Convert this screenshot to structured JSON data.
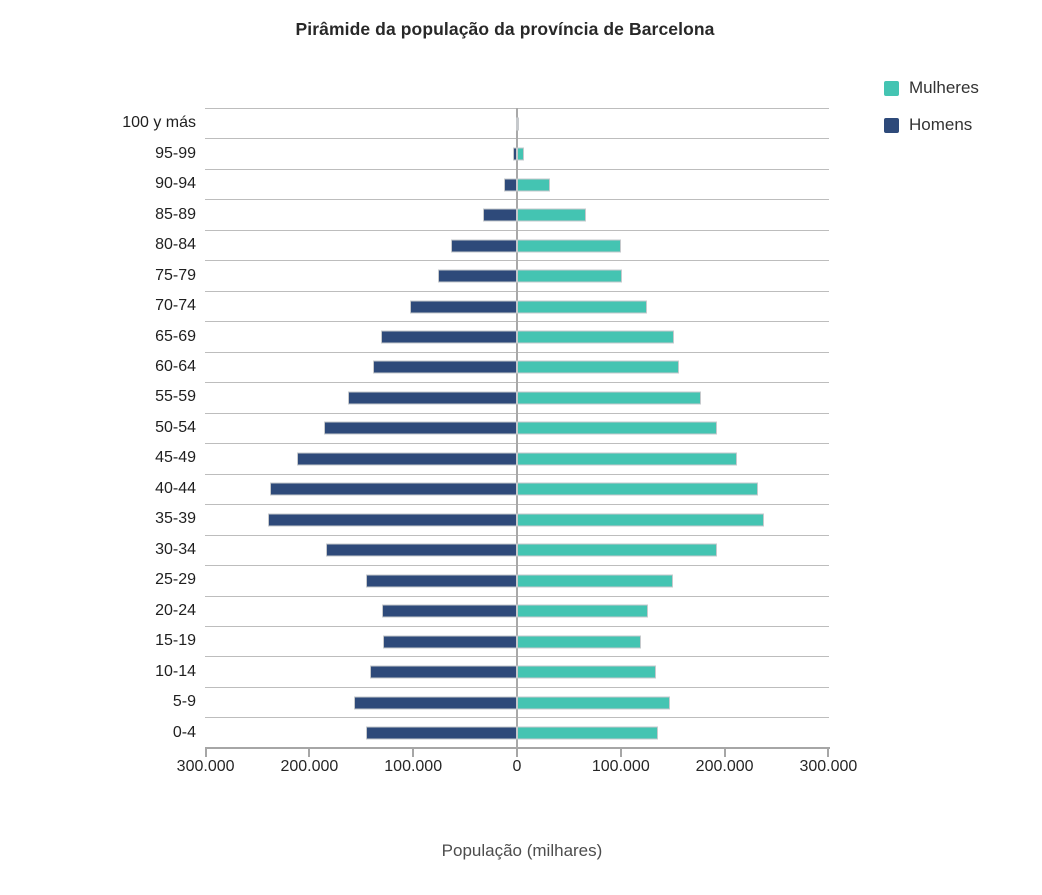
{
  "title": "Pirâmide da população da província de Barcelona",
  "xlabel": "População (milhares)",
  "legend": {
    "position": "top-right",
    "items": [
      {
        "label": "Mulheres",
        "color": "#44c4b2"
      },
      {
        "label": "Homens",
        "color": "#2e4a7a"
      }
    ]
  },
  "colors": {
    "mulheres": "#44c4b2",
    "homens": "#2e4a7a",
    "gridline": "#bdbdbd",
    "axis": "#a6a6a6",
    "bar_border": "#c6c9cc"
  },
  "chart_data": {
    "type": "bar",
    "subtype": "population-pyramid",
    "orientation": "horizontal",
    "title": "Pirâmide da população da província de Barcelona",
    "xlabel": "População (milhares)",
    "categories": [
      "100 y más",
      "95-99",
      "90-94",
      "85-89",
      "80-84",
      "75-79",
      "70-74",
      "65-69",
      "60-64",
      "55-59",
      "50-54",
      "45-49",
      "40-44",
      "35-39",
      "30-34",
      "25-29",
      "20-24",
      "15-19",
      "10-14",
      "5-9",
      "0-4"
    ],
    "series": [
      {
        "name": "Homens",
        "side": "left",
        "color": "#2e4a7a",
        "values": [
          1000,
          3500,
          13000,
          33000,
          64000,
          76000,
          103000,
          131000,
          139000,
          163000,
          186000,
          212000,
          238000,
          240000,
          184000,
          145000,
          130000,
          129000,
          142000,
          157000,
          145000
        ]
      },
      {
        "name": "Mulheres",
        "side": "right",
        "color": "#44c4b2",
        "values": [
          2000,
          7000,
          32000,
          66000,
          100000,
          101000,
          125000,
          151000,
          156000,
          177000,
          193000,
          212000,
          232000,
          238000,
          193000,
          150000,
          126000,
          119000,
          134000,
          147000,
          136000
        ]
      }
    ],
    "x_axis": {
      "range": [
        -300000,
        300000
      ],
      "tick_values": [
        -300000,
        -200000,
        -100000,
        0,
        100000,
        200000,
        300000
      ],
      "tick_labels": [
        "300.000",
        "200.000",
        "100.000",
        "0",
        "100.000",
        "200.000",
        "300.000"
      ]
    },
    "grid": "horizontal",
    "legend_position": "top-right"
  }
}
